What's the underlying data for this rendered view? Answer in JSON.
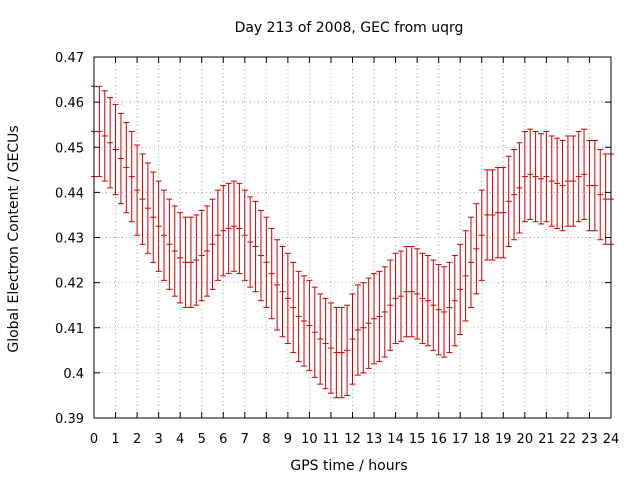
{
  "chart_data": {
    "type": "line",
    "title": "Day 213 of 2008, GEC from uqrg",
    "xlabel": "GPS time / hours",
    "ylabel": "Global Electron Content / GECUs",
    "xlim": [
      0,
      24
    ],
    "ylim": [
      0.39,
      0.47
    ],
    "x_ticks": [
      0,
      1,
      2,
      3,
      4,
      5,
      6,
      7,
      8,
      9,
      10,
      11,
      12,
      13,
      14,
      15,
      16,
      17,
      18,
      19,
      20,
      21,
      22,
      23,
      24
    ],
    "y_ticks": [
      0.39,
      0.4,
      0.41,
      0.42,
      0.43,
      0.44,
      0.45,
      0.46,
      0.47
    ],
    "y_tick_labels": [
      "0.39",
      "0.4",
      "0.41",
      "0.42",
      "0.43",
      "0.44",
      "0.45",
      "0.46",
      "0.47"
    ],
    "grid": true,
    "series": [
      {
        "color": "#cc0000",
        "error_bar": 0.01,
        "x": [
          0.0,
          0.25,
          0.5,
          0.75,
          1.0,
          1.25,
          1.5,
          1.75,
          2.0,
          2.25,
          2.5,
          2.75,
          3.0,
          3.25,
          3.5,
          3.75,
          4.0,
          4.25,
          4.5,
          4.75,
          5.0,
          5.25,
          5.5,
          5.75,
          6.0,
          6.25,
          6.5,
          6.75,
          7.0,
          7.25,
          7.5,
          7.75,
          8.0,
          8.25,
          8.5,
          8.75,
          9.0,
          9.25,
          9.5,
          9.75,
          10.0,
          10.25,
          10.5,
          10.75,
          11.0,
          11.25,
          11.5,
          11.75,
          12.0,
          12.25,
          12.5,
          12.75,
          13.0,
          13.25,
          13.5,
          13.75,
          14.0,
          14.25,
          14.5,
          14.75,
          15.0,
          15.25,
          15.5,
          15.75,
          16.0,
          16.25,
          16.5,
          16.75,
          17.0,
          17.25,
          17.5,
          17.75,
          18.0,
          18.25,
          18.5,
          18.75,
          19.0,
          19.25,
          19.5,
          19.75,
          20.0,
          20.25,
          20.5,
          20.75,
          21.0,
          21.25,
          21.5,
          21.75,
          22.0,
          22.25,
          22.5,
          22.75,
          23.0,
          23.25,
          23.5,
          23.75,
          24.0
        ],
        "y": [
          0.4535,
          0.4535,
          0.4525,
          0.451,
          0.4495,
          0.4475,
          0.4455,
          0.4435,
          0.4405,
          0.4385,
          0.4365,
          0.4345,
          0.4325,
          0.4305,
          0.4285,
          0.427,
          0.4255,
          0.4245,
          0.4245,
          0.425,
          0.426,
          0.427,
          0.4285,
          0.4305,
          0.4315,
          0.432,
          0.4325,
          0.432,
          0.4305,
          0.429,
          0.428,
          0.426,
          0.4245,
          0.422,
          0.4195,
          0.418,
          0.4165,
          0.4145,
          0.4125,
          0.4115,
          0.4105,
          0.409,
          0.4075,
          0.4065,
          0.4055,
          0.4045,
          0.4045,
          0.405,
          0.4075,
          0.4095,
          0.41,
          0.411,
          0.412,
          0.4125,
          0.4135,
          0.415,
          0.4165,
          0.417,
          0.418,
          0.418,
          0.4175,
          0.4165,
          0.416,
          0.415,
          0.414,
          0.4135,
          0.4145,
          0.416,
          0.4185,
          0.4215,
          0.4245,
          0.4275,
          0.4305,
          0.435,
          0.435,
          0.4355,
          0.4355,
          0.438,
          0.4395,
          0.441,
          0.4435,
          0.444,
          0.4435,
          0.443,
          0.4435,
          0.4425,
          0.442,
          0.4415,
          0.4425,
          0.4425,
          0.4435,
          0.444,
          0.4415,
          0.4415,
          0.4395,
          0.4385,
          0.4385
        ]
      }
    ]
  }
}
